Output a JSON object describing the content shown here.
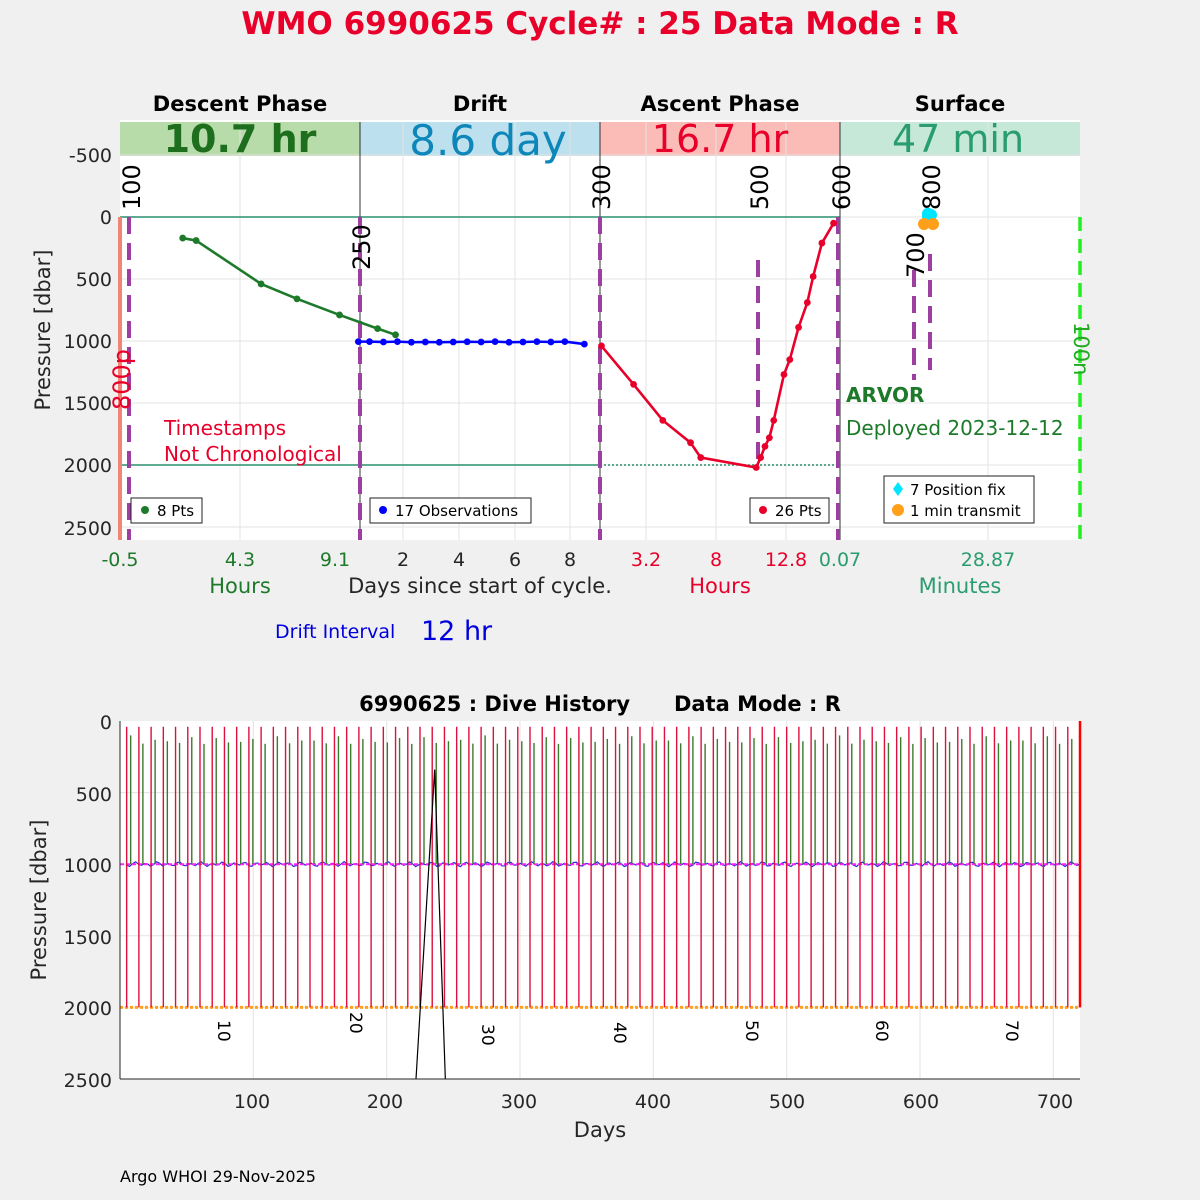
{
  "header": {
    "title": "WMO 6990625   Cycle# : 25   Data Mode : R",
    "title_color": "#e8002a"
  },
  "phases": [
    {
      "name": "Descent Phase",
      "duration": "10.7 hr",
      "band_color": "#b8dbaa",
      "text_color": "#1d6e1d"
    },
    {
      "name": "Drift",
      "duration": "8.6 day",
      "band_color": "#bde0ee",
      "text_color": "#0d86b9"
    },
    {
      "name": "Ascent Phase",
      "duration": "16.7 hr",
      "band_color": "#fbbcb7",
      "text_color": "#e8002a"
    },
    {
      "name": "Surface",
      "duration": "47 min",
      "band_color": "#c6e8d9",
      "text_color": "#2a9d70"
    }
  ],
  "top_axis": {
    "y_ticks": [
      "-500",
      "0",
      "500",
      "1000",
      "1500",
      "2000",
      "2500"
    ],
    "ylabel": "Pressure [dbar]",
    "descent_ticks": [
      "-0.5",
      "4.3",
      "9.1"
    ],
    "drift_ticks": [
      "2",
      "4",
      "6",
      "8"
    ],
    "ascent_ticks": [
      "3.2",
      "8",
      "12.8"
    ],
    "surface_ticks": [
      "0.07",
      "28.87"
    ],
    "descent_unit": "Hours",
    "drift_unit": "Days since start of cycle.",
    "ascent_unit": "Hours",
    "surface_unit": "Minutes"
  },
  "annotations": {
    "markers": [
      "100",
      "250",
      "300",
      "500",
      "600",
      "700",
      "800"
    ],
    "depth_800": "800p",
    "depth_100": "100n",
    "timestamps_line1": "Timestamps",
    "timestamps_line2": "Not Chronological",
    "float_type": "ARVOR",
    "deployed": "Deployed 2023-12-12",
    "drift_interval_label": "Drift Interval",
    "drift_interval_value": "12 hr"
  },
  "legends": {
    "descent": "8 Pts",
    "drift": "17 Observations",
    "ascent": "26 Pts",
    "surface_fix": "7 Position fix",
    "surface_transmit": "1 min transmit"
  },
  "history": {
    "title": "6990625 : Dive History      Data Mode : R",
    "ylabel": "Pressure [dbar]",
    "xlabel": "Days",
    "x_ticks": [
      "100",
      "200",
      "300",
      "400",
      "500",
      "600",
      "700"
    ],
    "y_ticks": [
      "0",
      "500",
      "1000",
      "1500",
      "2000",
      "2500"
    ],
    "cycle_labels": [
      "10",
      "20",
      "30",
      "40",
      "50",
      "60",
      "70"
    ]
  },
  "footer": "Argo WHOI 29-Nov-2025",
  "chart_data": [
    {
      "type": "line",
      "panel": "Descent Phase",
      "xlabel": "Hours",
      "ylabel": "Pressure [dbar]",
      "ylim": [
        -750,
        2600
      ],
      "x": [
        -0.5,
        2.3,
        2.9,
        5.8,
        7.4,
        9.3,
        11.0,
        11.8
      ],
      "y": [
        null,
        170,
        190,
        540,
        660,
        790,
        900,
        950
      ],
      "series": [
        {
          "name": "8 Pts",
          "color": "#1d7a2a"
        }
      ]
    },
    {
      "type": "line",
      "panel": "Drift",
      "xlabel": "Days since start of cycle.",
      "ylim": [
        -750,
        2600
      ],
      "x": [
        0.4,
        0.8,
        1.3,
        1.8,
        2.3,
        2.8,
        3.3,
        3.8,
        4.3,
        4.8,
        5.3,
        5.8,
        6.3,
        6.8,
        7.3,
        7.8,
        8.5
      ],
      "y": [
        1005,
        1005,
        1008,
        1005,
        1010,
        1008,
        1010,
        1008,
        1006,
        1008,
        1005,
        1010,
        1008,
        1005,
        1008,
        1005,
        1025
      ],
      "series": [
        {
          "name": "17 Observations",
          "color": "#0000ff"
        }
      ]
    },
    {
      "type": "line",
      "panel": "Ascent Phase",
      "xlabel": "Hours",
      "ylim": [
        -750,
        2600
      ],
      "x": [
        0.1,
        2.3,
        4.3,
        6.2,
        6.9,
        10.7,
        11.0,
        11.3,
        11.6,
        11.9,
        12.6,
        13.0,
        13.6,
        14.2,
        14.6,
        15.2,
        16.0
      ],
      "y": [
        1040,
        1350,
        1640,
        1820,
        1940,
        2020,
        1940,
        1850,
        1780,
        1640,
        1270,
        1150,
        890,
        690,
        480,
        210,
        50
      ],
      "series": [
        {
          "name": "26 Pts",
          "color": "#e8002a"
        }
      ]
    },
    {
      "type": "scatter",
      "panel": "Surface",
      "xlabel": "Minutes",
      "series": [
        {
          "name": "7 Position fix",
          "color": "#00e5ff",
          "y": [
            -50,
            -40,
            -30
          ]
        },
        {
          "name": "1 min transmit",
          "color": "#ff9f1a",
          "y": [
            55
          ]
        }
      ]
    },
    {
      "type": "line",
      "title": "6990625 : Dive History      Data Mode : R",
      "xlabel": "Days",
      "ylabel": "Pressure [dbar]",
      "xlim": [
        0,
        720
      ],
      "ylim": [
        0,
        2500
      ],
      "cycles": 78,
      "drift_pressure": 1000,
      "profile_pressure": 2000
    }
  ]
}
